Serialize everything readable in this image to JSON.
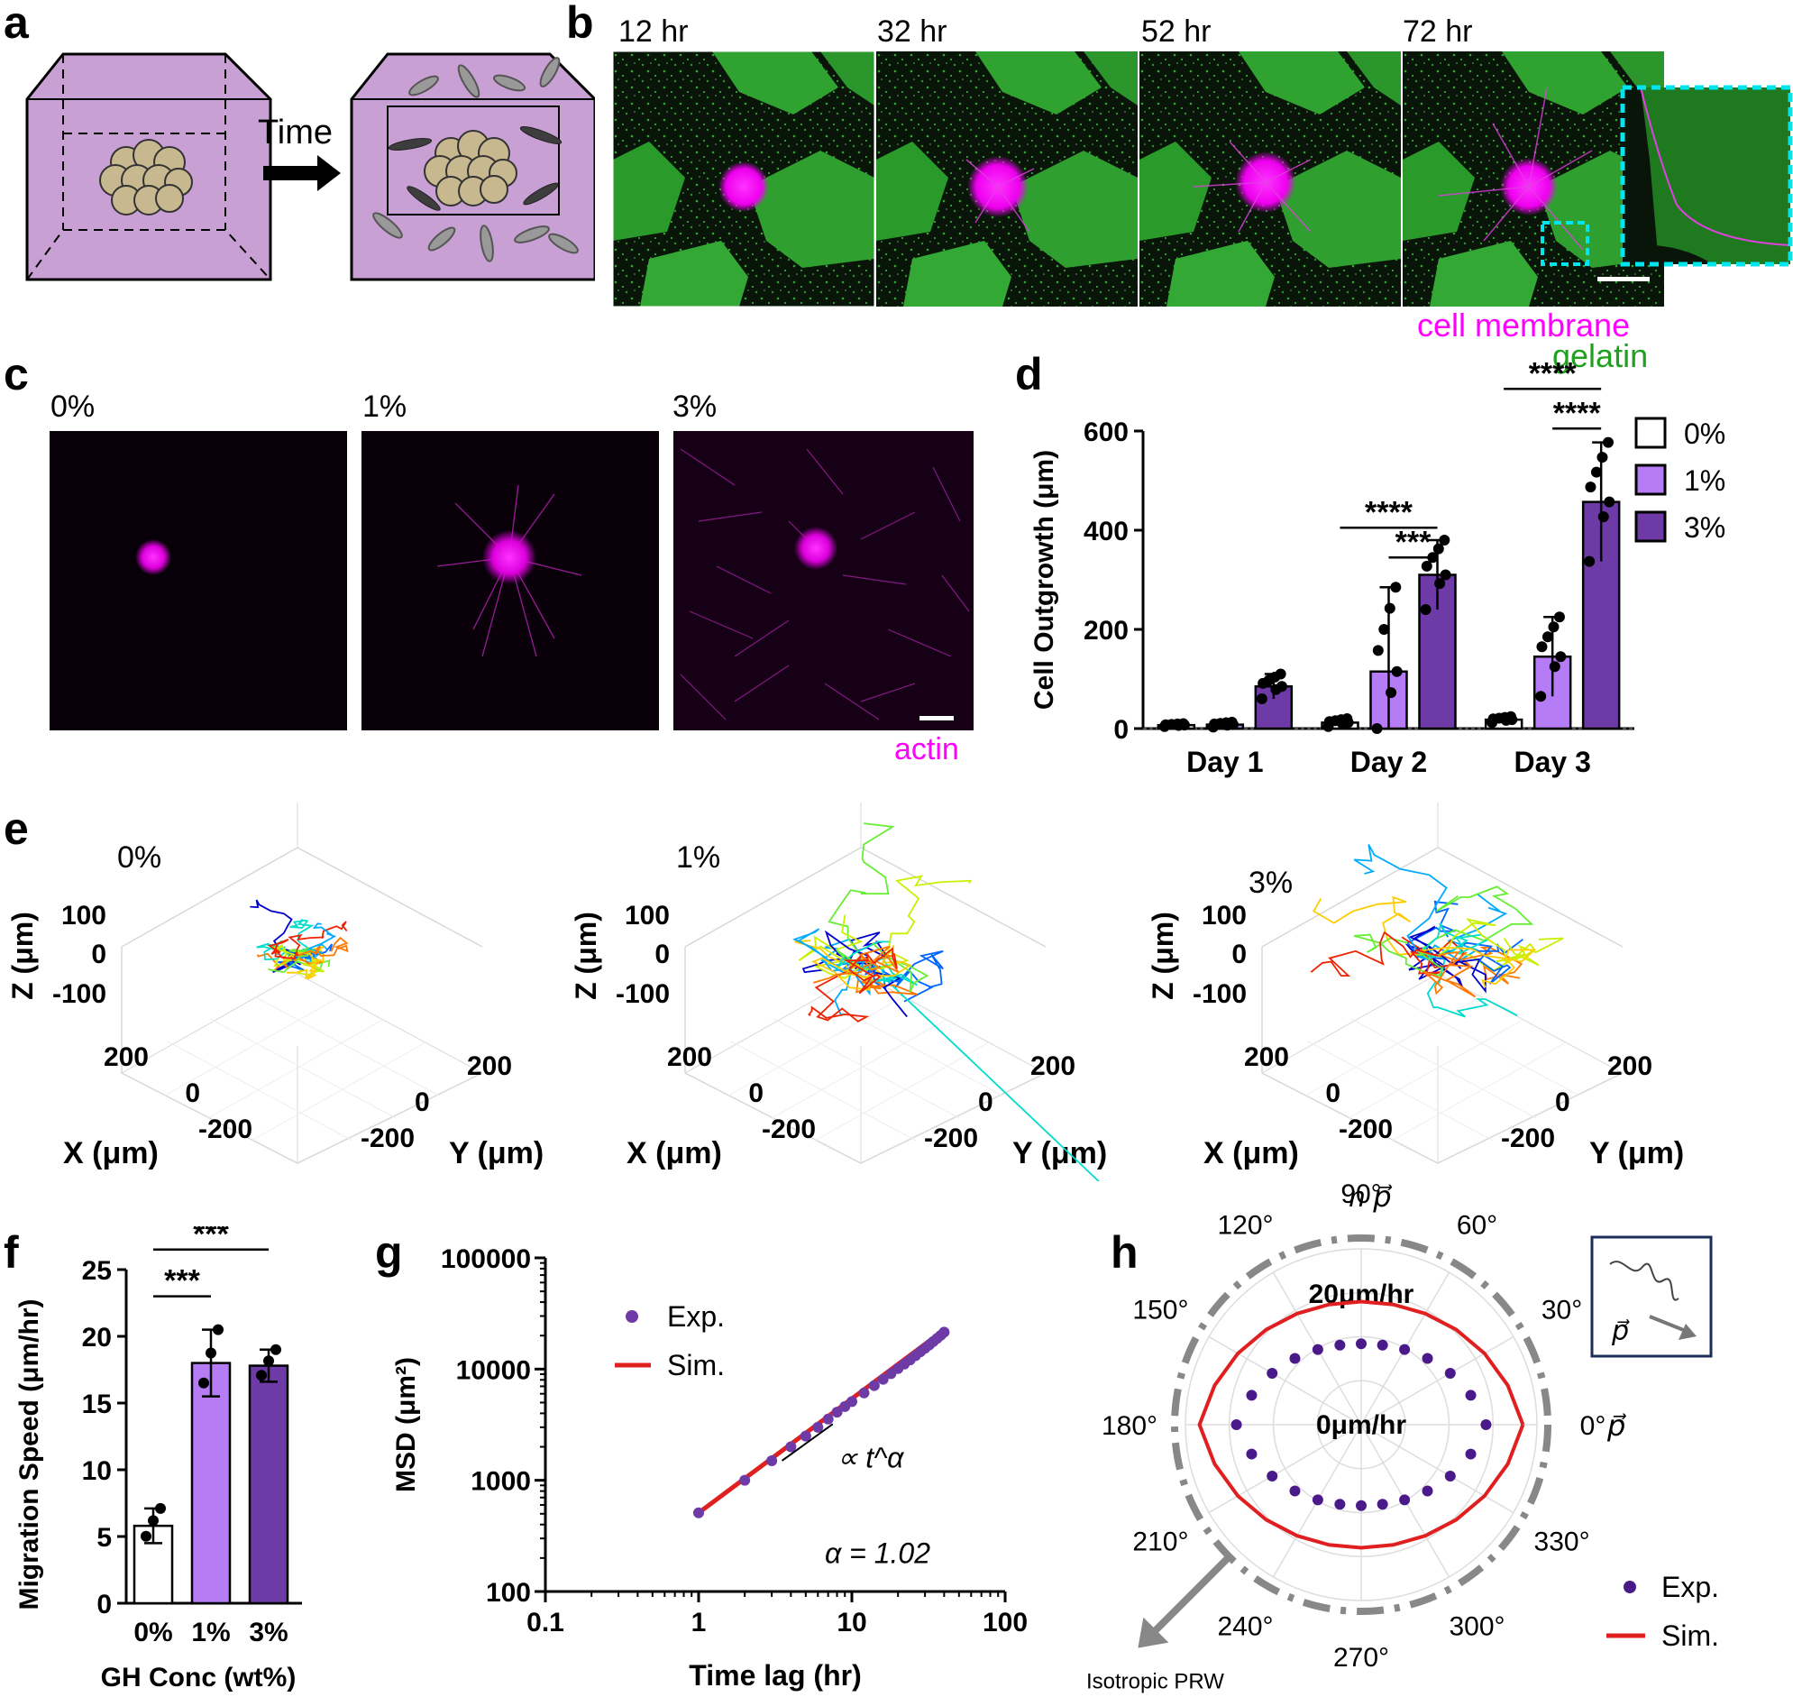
{
  "panels": {
    "a": "a",
    "b": "b",
    "c": "c",
    "d": "d",
    "e": "e",
    "f": "f",
    "g": "g",
    "h": "h"
  },
  "panel_a": {
    "arrow_label": "Time"
  },
  "panel_b": {
    "times": [
      "12 hr",
      "32 hr",
      "52 hr",
      "72 hr"
    ],
    "legend_membrane": "cell membrane",
    "legend_gelatin": "gelatin",
    "colors": {
      "membrane": "#ff00ff",
      "gelatin": "#1fa01f",
      "inset": "#00e5ee"
    }
  },
  "panel_c": {
    "concs": [
      "0%",
      "1%",
      "3%"
    ],
    "stain": "actin"
  },
  "panel_d": {
    "chart_data": {
      "type": "bar",
      "categories": [
        "Day 1",
        "Day 2",
        "Day 3"
      ],
      "ylabel": "Cell Outgrowth (μm)",
      "ylim": [
        0,
        600
      ],
      "yticks": [
        0,
        200,
        400,
        600
      ],
      "series": [
        {
          "name": "0%",
          "values": [
            7,
            12,
            18
          ],
          "err": [
            3,
            8,
            6
          ],
          "color": "#ffffff"
        },
        {
          "name": "1%",
          "values": [
            8,
            115,
            145
          ],
          "err": [
            5,
            170,
            80
          ],
          "color": "#b57cf5"
        },
        {
          "name": "3%",
          "values": [
            85,
            310,
            457
          ],
          "err": [
            25,
            70,
            120
          ],
          "color": "#6d3aa6"
        }
      ],
      "significance": [
        "****",
        "***",
        "****",
        "****"
      ],
      "legend": "right"
    }
  },
  "panel_e": {
    "concs": [
      "0%",
      "1%",
      "3%"
    ],
    "zlabel": "Z (μm)",
    "xlabel": "X (μm)",
    "ylabel": "Y (μm)",
    "zticks": [
      "100",
      "0",
      "-100"
    ],
    "xyticks": [
      "200",
      "0",
      "-200"
    ]
  },
  "panel_f": {
    "chart_data": {
      "type": "bar",
      "categories": [
        "0%",
        "1%",
        "3%"
      ],
      "values": [
        5.8,
        18.0,
        17.8
      ],
      "err": [
        1.3,
        2.5,
        1.2
      ],
      "colors": [
        "#ffffff",
        "#b57cf5",
        "#6d3aa6"
      ],
      "ylabel": "Migration Speed (μm/hr)",
      "xlabel": "GH Conc (wt%)",
      "ylim": [
        0,
        25
      ],
      "yticks": [
        0,
        5,
        10,
        15,
        20,
        25
      ],
      "significance": [
        "***",
        "***"
      ]
    }
  },
  "panel_g": {
    "chart_data": {
      "type": "scatter",
      "xscale": "log",
      "yscale": "log",
      "xlim": [
        0.1,
        100
      ],
      "ylim": [
        100,
        100000
      ],
      "xticks": [
        "0.1",
        "1",
        "10",
        "100"
      ],
      "yticks": [
        "100",
        "1000",
        "10000",
        "100000"
      ],
      "xlabel": "Time lag (hr)",
      "ylabel": "MSD (μm²)",
      "series": [
        {
          "name": "Exp.",
          "color": "#6d3aa6",
          "x": [
            1,
            2,
            3,
            4,
            5,
            6,
            7,
            8,
            9,
            10,
            12,
            14,
            16,
            18,
            20,
            22,
            24,
            26,
            28,
            30,
            32,
            34,
            36,
            38,
            40
          ],
          "y": [
            510,
            1000,
            1500,
            2000,
            2500,
            3000,
            3550,
            4100,
            4600,
            5100,
            6100,
            7100,
            8100,
            9100,
            10100,
            11100,
            12100,
            13200,
            14300,
            15400,
            16500,
            17700,
            18900,
            20100,
            21500
          ]
        },
        {
          "name": "Sim.",
          "color": "#e02020",
          "x": [
            1,
            40
          ],
          "y": [
            510,
            22500
          ]
        }
      ],
      "annotation": "∝ t^α",
      "alpha_text": "α = 1.02"
    }
  },
  "panel_h": {
    "chart_data": {
      "type": "polar",
      "angle_labels": [
        "0°",
        "30°",
        "60°",
        "90°",
        "120°",
        "150°",
        "180°",
        "210°",
        "240°",
        "270°",
        "300°",
        "330°"
      ],
      "r_labels": [
        "20μm/hr",
        "0μm/hr"
      ],
      "rlim": [
        0,
        20
      ],
      "series": [
        {
          "name": "Exp.",
          "color": "#4a1a8a"
        },
        {
          "name": "Sim.",
          "color": "#e02020"
        }
      ],
      "top_label": "n p⃗",
      "right_label": "p⃗",
      "inset_label": "p⃗",
      "arrow_label": "Isotropic PRW"
    }
  }
}
